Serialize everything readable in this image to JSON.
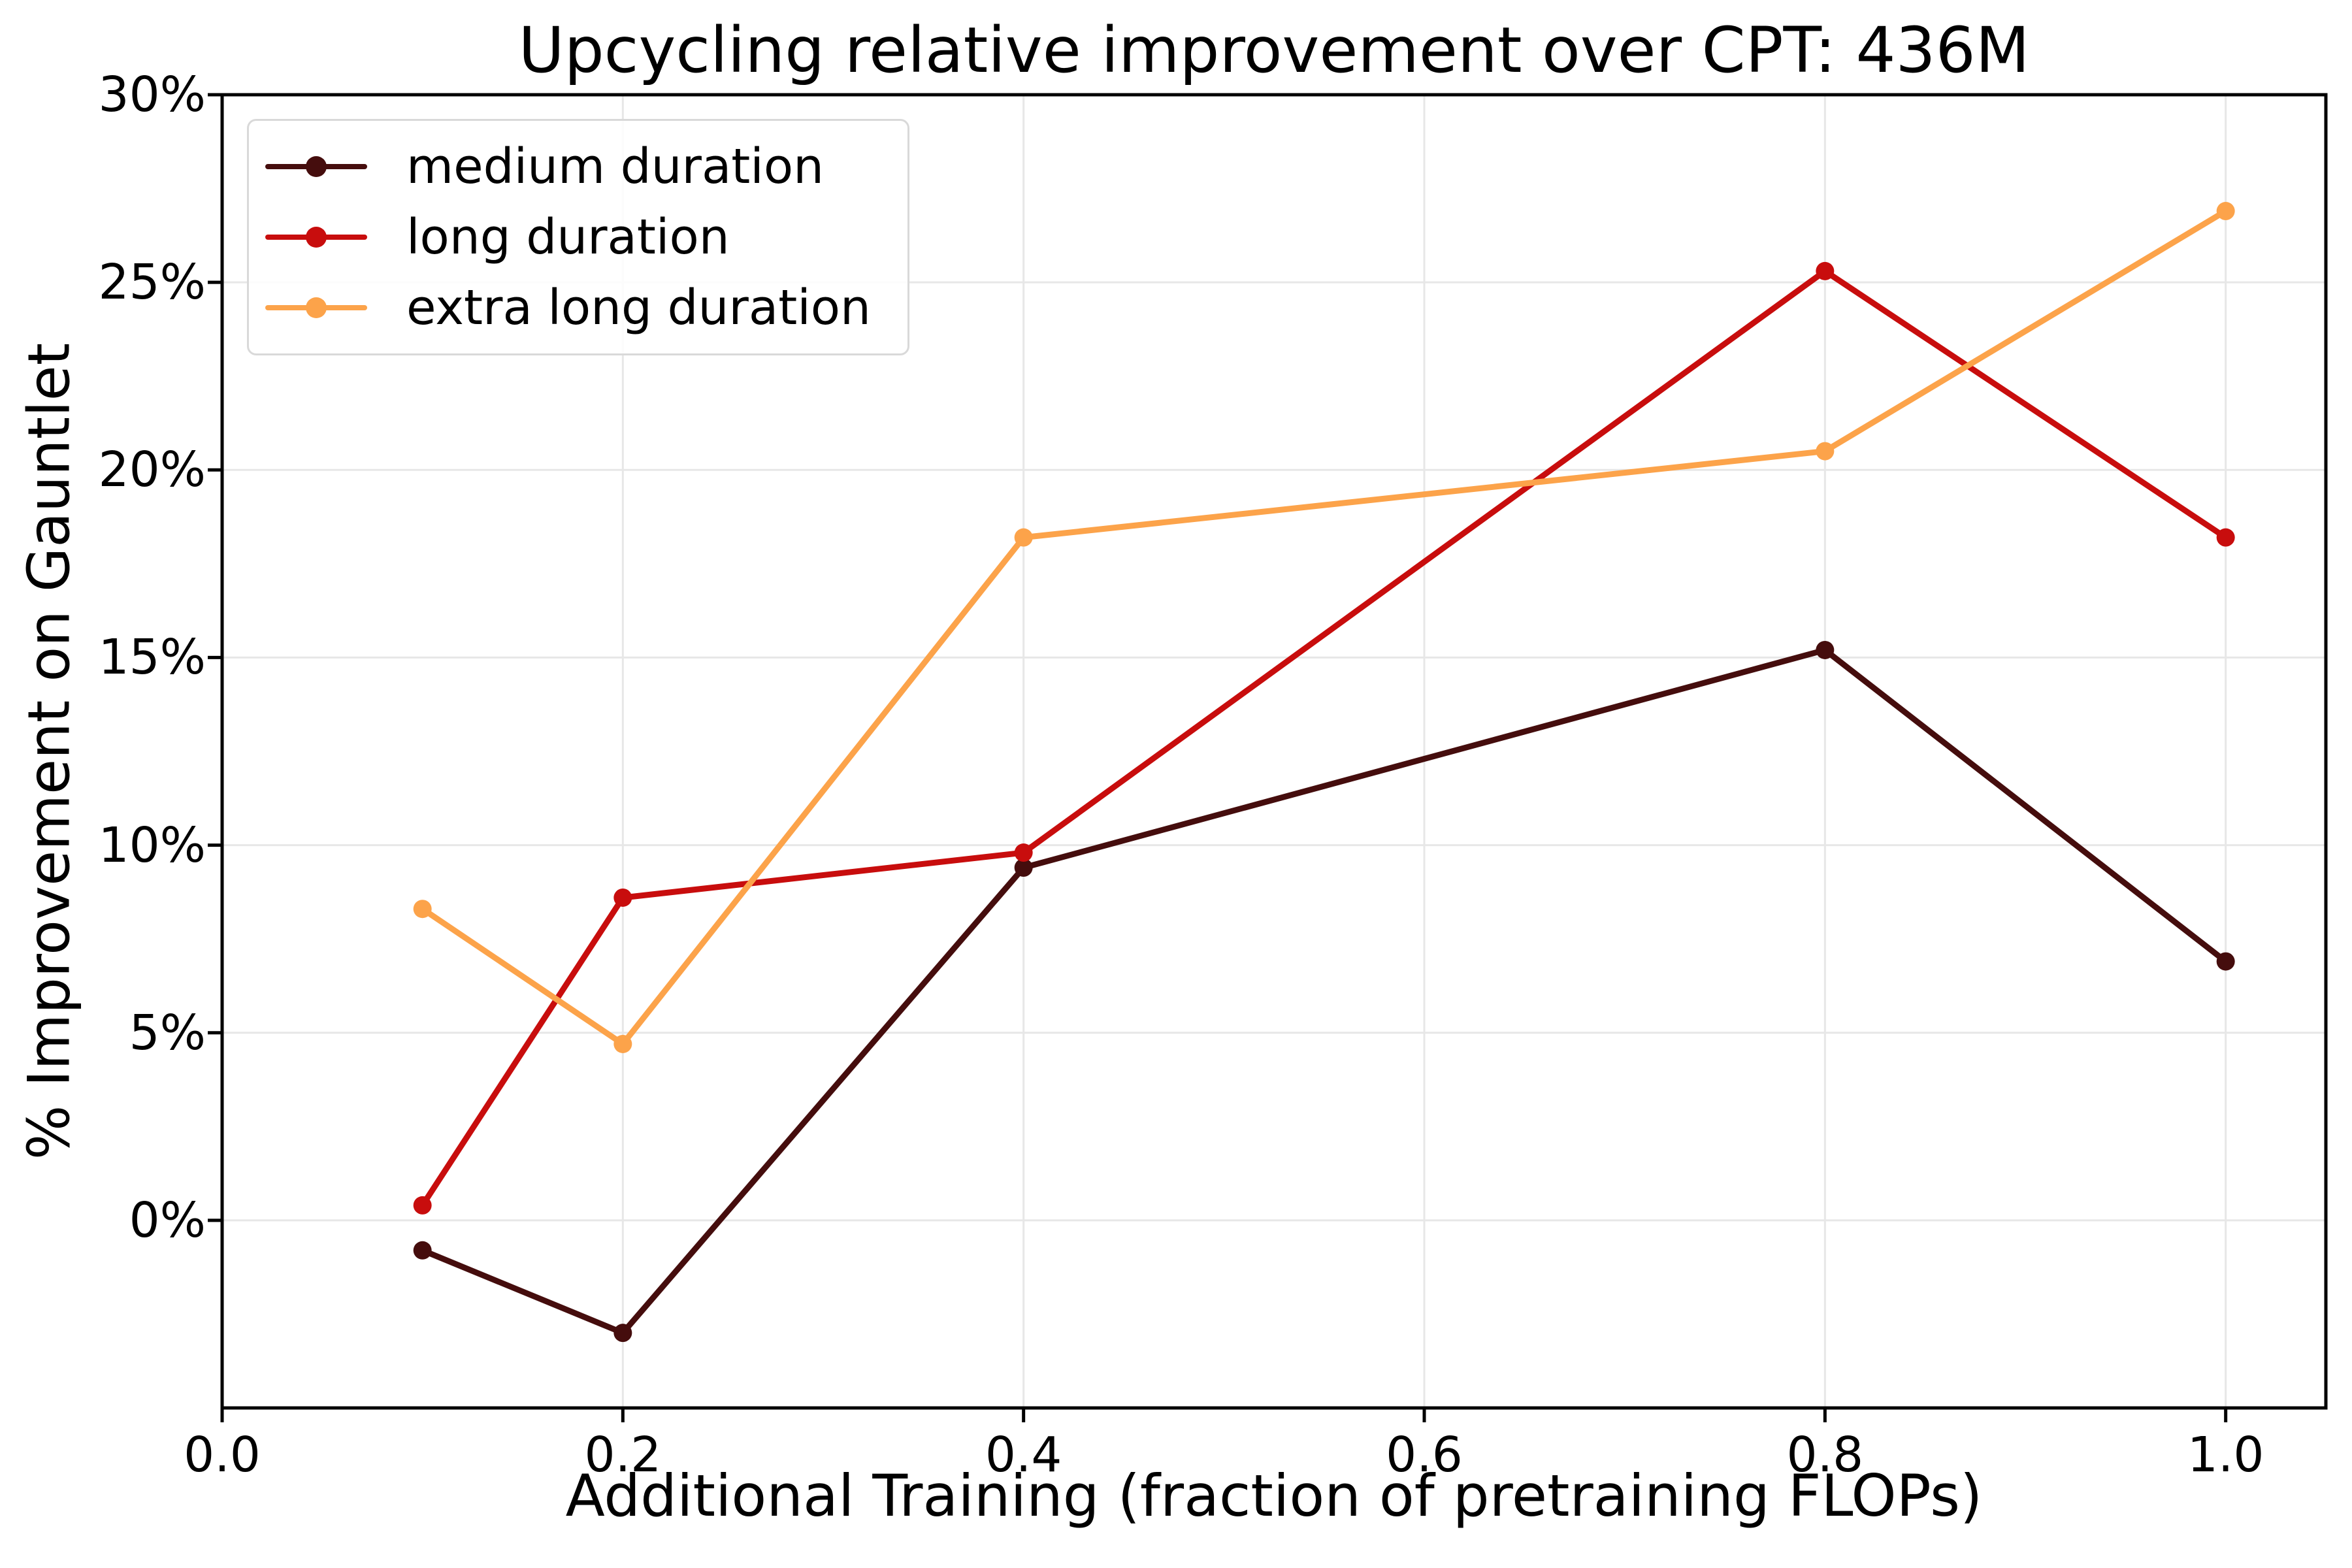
{
  "chart_data": {
    "type": "line",
    "title": "Upcycling relative improvement over CPT: 436M",
    "xlabel": "Additional Training (fraction of pretraining FLOPs)",
    "ylabel": "% Improvement on Gauntlet",
    "x": [
      0.1,
      0.2,
      0.4,
      0.8,
      1.0
    ],
    "series": [
      {
        "name": "medium duration",
        "color": "#450d0d",
        "values": [
          -0.8,
          -3.0,
          9.4,
          15.2,
          6.9
        ]
      },
      {
        "name": "long duration",
        "color": "#c80d0d",
        "values": [
          0.4,
          8.6,
          9.8,
          25.3,
          18.2
        ]
      },
      {
        "name": "extra long duration",
        "color": "#fca34a",
        "values": [
          8.3,
          4.7,
          18.2,
          20.5,
          26.9
        ]
      }
    ],
    "xlim": [
      0.0,
      1.05
    ],
    "ylim": [
      -5.0,
      30.0
    ],
    "x_ticks": {
      "values": [
        0.0,
        0.2,
        0.4,
        0.6,
        0.8,
        1.0
      ],
      "labels": [
        "0.0",
        "0.2",
        "0.4",
        "0.6",
        "0.8",
        "1.0"
      ]
    },
    "y_ticks": {
      "values": [
        0,
        5,
        10,
        15,
        20,
        25,
        30
      ],
      "labels": [
        "0%",
        "5%",
        "10%",
        "15%",
        "20%",
        "25%",
        "30%"
      ]
    },
    "grid": true,
    "legend_position": "upper-left",
    "marker": "circle",
    "colors": {
      "grid": "#e7e7e7",
      "spine": "#000000",
      "background": "#ffffff",
      "text": "#000000"
    }
  }
}
